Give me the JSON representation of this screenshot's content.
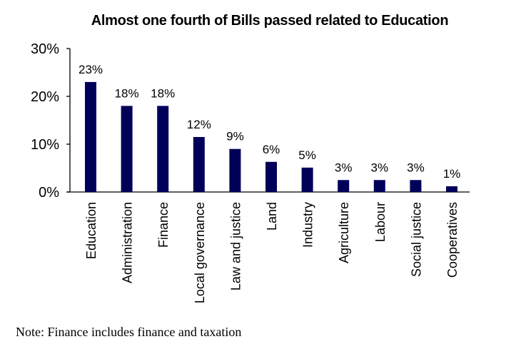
{
  "chart_data": {
    "type": "bar",
    "title": "Almost one fourth of Bills passed related to Education",
    "xlabel": "",
    "ylabel": "",
    "categories": [
      "Education",
      "Administration",
      "Finance",
      "Local governance",
      "Law and justice",
      "Land",
      "Industry",
      "Agriculture",
      "Labour",
      "Social justice",
      "Cooperatives"
    ],
    "values": [
      23,
      18,
      18,
      11.5,
      9,
      6.3,
      5.1,
      2.5,
      2.5,
      2.5,
      1.2
    ],
    "data_labels": [
      "23%",
      "18%",
      "18%",
      "12%",
      "9%",
      "6%",
      "5%",
      "3%",
      "3%",
      "3%",
      "1%"
    ],
    "ylim": [
      0,
      30
    ],
    "yticks": [
      0,
      10,
      20,
      30
    ],
    "ytick_labels": [
      "0%",
      "10%",
      "20%",
      "30%"
    ],
    "grid": false,
    "bar_color": "#000058"
  },
  "note": "Note: Finance includes finance and taxation"
}
